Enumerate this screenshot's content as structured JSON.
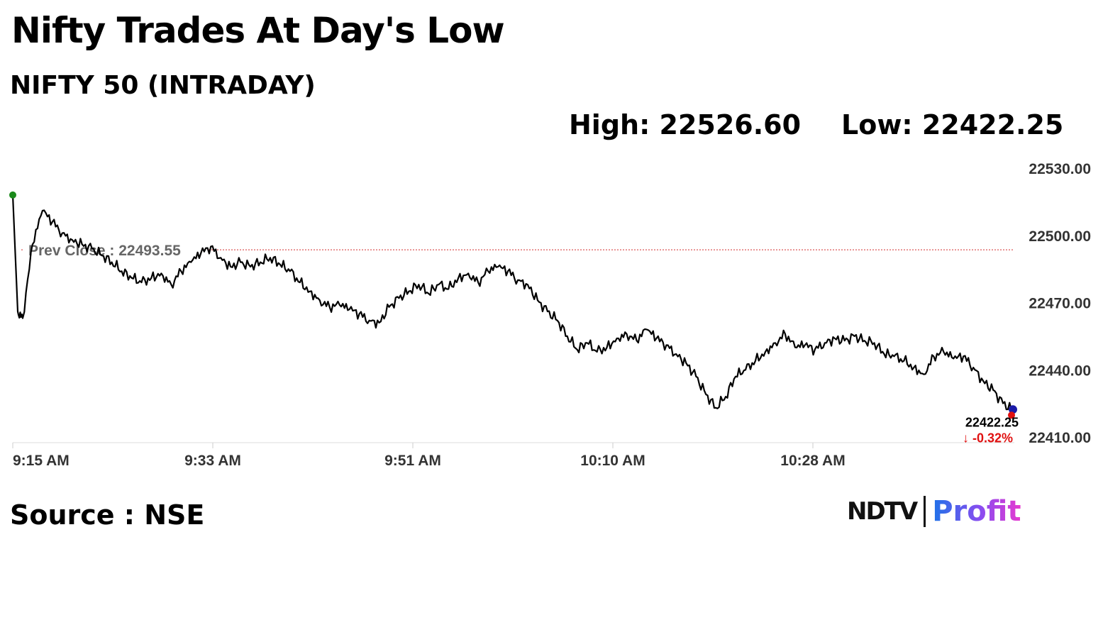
{
  "title": "Nifty Trades At Day's Low",
  "subtitle": "NIFTY 50 (INTRADAY)",
  "stats": {
    "high_label": "High: 22526.60",
    "low_label": "Low: 22422.25"
  },
  "source": "Source : NSE",
  "logo": {
    "part1": "NDTV",
    "part2": "Profit"
  },
  "colors": {
    "line": "#000000",
    "prev_close_line": "#d32f2f",
    "start_dot": "#1b8a1b",
    "end_dot": "#1a1aa8",
    "low_dot": "#e01010",
    "change_text": "#e01010"
  },
  "chart_data": {
    "type": "line",
    "title": "NIFTY 50 (INTRADAY)",
    "xlabel": "",
    "ylabel": "",
    "x_ticks": [
      "9:15 AM",
      "9:33 AM",
      "9:51 AM",
      "10:10 AM",
      "10:28 AM"
    ],
    "y_ticks": [
      "22530.00",
      "22500.00",
      "22470.00",
      "22440.00",
      "22410.00"
    ],
    "ylim": [
      22410,
      22530
    ],
    "prev_close": {
      "label": "Prev Close : 22493.55",
      "value": 22493.55
    },
    "last": {
      "value_label": "22422.25",
      "change_label": "↓ -0.32%",
      "value": 22422.25
    },
    "high": 22526.6,
    "low": 22422.25,
    "grid": false,
    "series": [
      {
        "x": [
          0,
          0.5,
          1,
          2,
          3,
          4,
          5,
          6,
          7,
          8,
          9,
          10,
          11,
          12,
          13,
          14,
          15,
          16,
          17,
          18,
          19,
          20,
          21,
          22,
          23,
          24,
          25,
          26,
          27,
          28,
          29,
          30,
          31,
          32,
          33,
          34,
          35,
          36,
          37,
          38,
          39,
          40,
          41,
          42,
          43,
          44,
          45,
          46,
          47,
          48,
          49,
          50,
          51,
          52,
          53,
          54,
          55,
          56,
          57,
          58,
          59,
          60,
          61,
          62,
          63,
          64,
          65,
          66,
          67,
          68,
          69,
          70,
          71,
          72,
          73,
          74,
          75,
          76,
          77,
          78,
          79,
          80,
          81,
          82,
          83,
          84,
          85,
          86,
          87,
          88,
          89,
          90,
          91,
          92,
          93,
          94,
          95,
          96,
          97,
          98,
          99,
          100,
          101
        ],
        "values": [
          22518,
          22466,
          22463,
          22496,
          22511,
          22506,
          22501,
          22498,
          22496,
          22494,
          22491,
          22488,
          22484,
          22481,
          22479,
          22481,
          22483,
          22478,
          22484,
          22488,
          22492,
          22495,
          22490,
          22486,
          22488,
          22486,
          22488,
          22490,
          22487,
          22484,
          22479,
          22475,
          22471,
          22468,
          22469,
          22467,
          22465,
          22462,
          22461,
          22468,
          22472,
          22475,
          22478,
          22474,
          22478,
          22476,
          22481,
          22483,
          22479,
          22484,
          22486,
          22484,
          22480,
          22478,
          22471,
          22466,
          22462,
          22455,
          22449,
          22452,
          22448,
          22450,
          22454,
          22456,
          22453,
          22458,
          22454,
          22451,
          22447,
          22443,
          22437,
          22429,
          22423,
          22428,
          22437,
          22440,
          22444,
          22448,
          22452,
          22456,
          22450,
          22451,
          22449,
          22452,
          22454,
          22453,
          22455,
          22453,
          22452,
          22447,
          22446,
          22444,
          22441,
          22438,
          22446,
          22448,
          22445,
          22446,
          22441,
          22435,
          22431,
          22425,
          22422
        ]
      }
    ]
  }
}
